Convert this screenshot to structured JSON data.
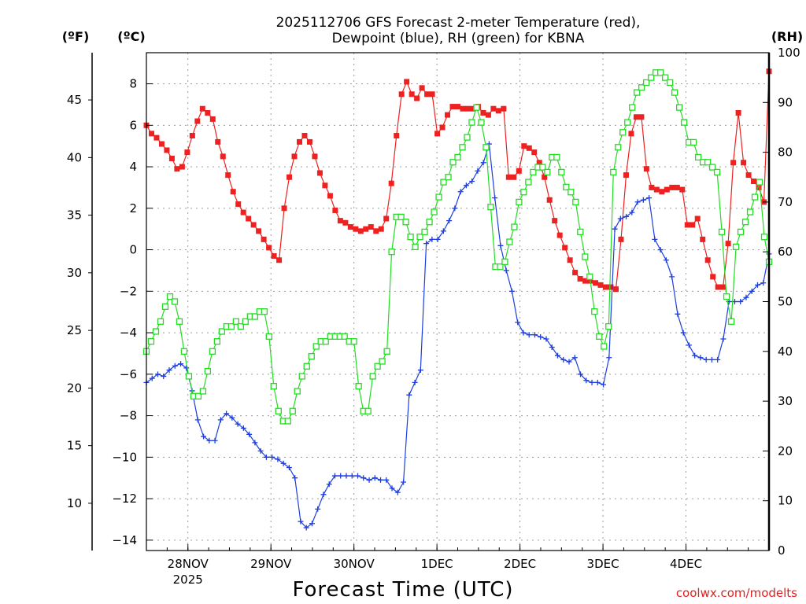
{
  "chart_data": {
    "type": "line",
    "title_line1": "2025112706 GFS Forecast 2-meter Temperature (red),",
    "title_line2": "Dewpoint (blue), RH (green) for KBNA",
    "xlabel": "Forecast Time (UTC)",
    "credit": "coolwx.com/modelts",
    "units": {
      "fahrenheit": "(ºF)",
      "celsius": "(ºC)",
      "rh": "(RH)"
    },
    "xlim": [
      6,
      186
    ],
    "y_celsius_lim": [
      -14.5,
      9.5
    ],
    "rh_lim": [
      0,
      100
    ],
    "x_ticks": [
      {
        "x": 18,
        "label": "28NOV",
        "sub": "2025"
      },
      {
        "x": 42,
        "label": "29NOV",
        "sub": ""
      },
      {
        "x": 66,
        "label": "30NOV",
        "sub": ""
      },
      {
        "x": 90,
        "label": "1DEC",
        "sub": ""
      },
      {
        "x": 114,
        "label": "2DEC",
        "sub": ""
      },
      {
        "x": 138,
        "label": "3DEC",
        "sub": ""
      },
      {
        "x": 162,
        "label": "4DEC",
        "sub": ""
      }
    ],
    "y_celsius_ticks": [
      "8",
      "6",
      "4",
      "2",
      "0",
      "−2",
      "−4",
      "−6",
      "−8",
      "−10",
      "−12",
      "−14"
    ],
    "y_fahrenheit_ticks": [
      "45",
      "40",
      "35",
      "30",
      "25",
      "20",
      "15",
      "10"
    ],
    "y_rh_ticks": [
      "100",
      "90",
      "80",
      "70",
      "60",
      "50",
      "40",
      "30",
      "20",
      "10",
      "0"
    ],
    "colors": {
      "temperature": "#ee2020",
      "dewpoint": "#1c3ee0",
      "rh": "#22dd22",
      "grid": "#9a9a9a"
    },
    "series": [
      {
        "name": "Temperature (°C)",
        "values": [
          6.0,
          5.6,
          5.4,
          5.1,
          4.8,
          4.4,
          3.9,
          4.0,
          4.7,
          5.5,
          6.2,
          6.8,
          6.6,
          6.3,
          5.2,
          4.5,
          3.6,
          2.8,
          2.2,
          1.8,
          1.5,
          1.2,
          0.9,
          0.5,
          0.1,
          -0.3,
          -0.5,
          2.0,
          3.5,
          4.5,
          5.2,
          5.5,
          5.2,
          4.5,
          3.7,
          3.1,
          2.6,
          1.9,
          1.4,
          1.3,
          1.1,
          1.0,
          0.9,
          1.0,
          1.1,
          0.9,
          1.0,
          1.5,
          3.2,
          5.5,
          7.5,
          8.1,
          7.5,
          7.3,
          7.8,
          7.5,
          7.5,
          5.6,
          5.9,
          6.5,
          6.9,
          6.9,
          6.8,
          6.8,
          6.8,
          6.9,
          6.6,
          6.5,
          6.8,
          6.7,
          6.8,
          3.5,
          3.5,
          3.8,
          5.0,
          4.9,
          4.7,
          4.2,
          3.5,
          2.4,
          1.4,
          0.7,
          0.1,
          -0.5,
          -1.1,
          -1.4,
          -1.5,
          -1.5,
          -1.6,
          -1.7,
          -1.8,
          -1.8,
          -1.9,
          0.5,
          3.6,
          5.6,
          6.4,
          6.4,
          3.9,
          3.0,
          2.9,
          2.8,
          2.9,
          3.0,
          3.0,
          2.9,
          1.2,
          1.2,
          1.5,
          0.5,
          -0.5,
          -1.3,
          -1.8,
          -1.8,
          0.3,
          4.2,
          6.6,
          4.2,
          3.6,
          3.3,
          3.0,
          2.3,
          8.6
        ]
      },
      {
        "name": "Dewpoint (°C)",
        "values": [
          -6.4,
          -6.2,
          -6.0,
          -6.1,
          -5.8,
          -5.6,
          -5.5,
          -5.7,
          -6.8,
          -8.2,
          -9.0,
          -9.2,
          -9.2,
          -8.2,
          -7.9,
          -8.1,
          -8.4,
          -8.6,
          -8.9,
          -9.3,
          -9.7,
          -10.0,
          -10.0,
          -10.1,
          -10.3,
          -10.5,
          -11.0,
          -13.1,
          -13.4,
          -13.2,
          -12.5,
          -11.8,
          -11.3,
          -10.9,
          -10.9,
          -10.9,
          -10.9,
          -10.9,
          -11.0,
          -11.1,
          -11.0,
          -11.1,
          -11.1,
          -11.5,
          -11.7,
          -11.2,
          -7.0,
          -6.4,
          -5.8,
          0.3,
          0.5,
          0.5,
          0.9,
          1.4,
          2.0,
          2.8,
          3.1,
          3.3,
          3.8,
          4.2,
          5.1,
          2.5,
          0.2,
          -1.0,
          -2.0,
          -3.5,
          -4.0,
          -4.1,
          -4.1,
          -4.2,
          -4.3,
          -4.7,
          -5.1,
          -5.3,
          -5.4,
          -5.2,
          -6.0,
          -6.3,
          -6.4,
          -6.4,
          -6.5,
          -5.2,
          1.0,
          1.5,
          1.6,
          1.8,
          2.3,
          2.4,
          2.5,
          0.5,
          0.0,
          -0.5,
          -1.3,
          -3.1,
          -4.0,
          -4.6,
          -5.1,
          -5.2,
          -5.3,
          -5.3,
          -5.3,
          -4.3,
          -2.5,
          -2.5,
          -2.5,
          -2.3,
          -2.0,
          -1.7,
          -1.6,
          -0.2
        ]
      },
      {
        "name": "RH (%)",
        "values": [
          40,
          42,
          44,
          46,
          49,
          51,
          50,
          46,
          40,
          35,
          31,
          31,
          32,
          36,
          40,
          42,
          44,
          45,
          45,
          46,
          45,
          46,
          47,
          47,
          48,
          48,
          43,
          33,
          28,
          26,
          26,
          28,
          32,
          35,
          37,
          39,
          41,
          42,
          42,
          43,
          43,
          43,
          43,
          42,
          42,
          33,
          28,
          28,
          35,
          37,
          38,
          40,
          60,
          67,
          67,
          66,
          63,
          61,
          63,
          64,
          66,
          68,
          71,
          74,
          75,
          78,
          79,
          81,
          83,
          86,
          89,
          86,
          81,
          69,
          57,
          57,
          58,
          62,
          65,
          70,
          72,
          74,
          76,
          77,
          77,
          76,
          79,
          79,
          76,
          73,
          72,
          70,
          64,
          59,
          55,
          48,
          43,
          41,
          45,
          76,
          81,
          84,
          86,
          89,
          92,
          93,
          94,
          95,
          96,
          96,
          95,
          94,
          92,
          89,
          86,
          82,
          82,
          79,
          78,
          78,
          77,
          76,
          64,
          51,
          46,
          61,
          64,
          66,
          68,
          71,
          74,
          63,
          58
        ]
      }
    ]
  }
}
